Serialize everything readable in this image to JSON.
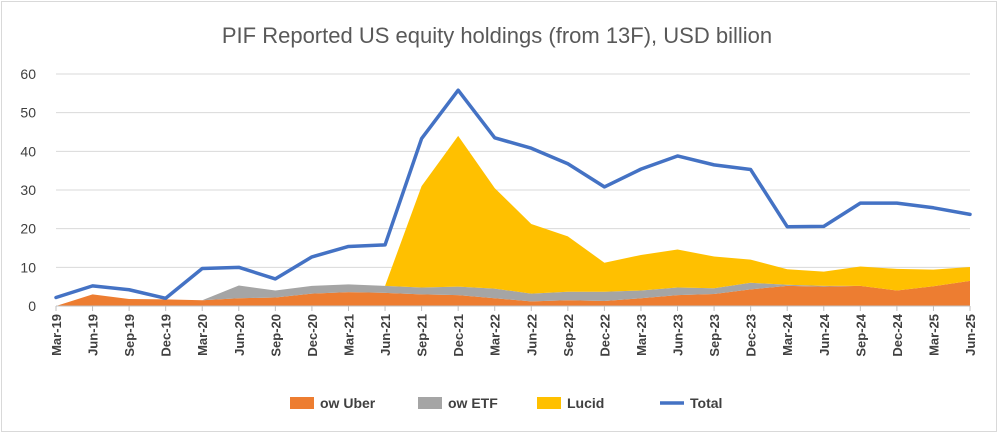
{
  "chart_data": {
    "type": "area",
    "title": "PIF Reported US equity holdings (from 13F), USD billion",
    "xlabel": "",
    "ylabel": "",
    "ylim": [
      0,
      60
    ],
    "yticks": [
      "0",
      "10",
      "20",
      "30",
      "40",
      "50",
      "60"
    ],
    "grid": true,
    "legend_position": "bottom",
    "categories": [
      "Mar-19",
      "Jun-19",
      "Sep-19",
      "Dec-19",
      "Mar-20",
      "Jun-20",
      "Sep-20",
      "Dec-20",
      "Mar-21",
      "Jun-21",
      "Sep-21",
      "Dec-21",
      "Mar-22",
      "Jun-22",
      "Sep-22",
      "Dec-22",
      "Mar-23",
      "Jun-23",
      "Sep-23",
      "Dec-23",
      "Mar-24",
      "Jun-24",
      "Sep-24",
      "Dec-24",
      "Mar-25",
      "Jun-25"
    ],
    "series": [
      {
        "name": "ow Uber",
        "kind": "stacked-area",
        "color": "#ed7d31",
        "values": [
          0,
          3.0,
          1.8,
          1.7,
          1.5,
          2.0,
          2.2,
          3.2,
          3.6,
          3.4,
          3.0,
          2.8,
          2.0,
          1.2,
          1.5,
          1.3,
          2.0,
          2.8,
          3.1,
          4.3,
          5.2,
          5.0,
          5.2,
          4.0,
          5.1,
          6.5
        ]
      },
      {
        "name": "ow ETF",
        "kind": "stacked-area",
        "color": "#a5a5a5",
        "values": [
          0,
          0,
          0,
          0,
          0,
          3.3,
          1.8,
          2.0,
          2.0,
          1.8,
          1.8,
          2.2,
          2.5,
          2.0,
          2.2,
          2.4,
          2.0,
          2.0,
          1.5,
          1.7,
          0.3,
          0.2,
          0,
          0,
          0,
          0
        ]
      },
      {
        "name": "Lucid",
        "kind": "stacked-area",
        "color": "#ffc000",
        "values": [
          0,
          0,
          0,
          0,
          0,
          0,
          0,
          0,
          0,
          0,
          26.2,
          39.0,
          26.0,
          18.0,
          14.3,
          7.5,
          9.2,
          9.8,
          8.2,
          6.0,
          4.0,
          3.7,
          5.0,
          5.6,
          4.3,
          3.6
        ]
      },
      {
        "name": "Total",
        "kind": "line",
        "color": "#4472c4",
        "values": [
          2.2,
          5.2,
          4.2,
          2.0,
          9.7,
          10.0,
          7.0,
          12.7,
          15.4,
          15.8,
          43.3,
          55.8,
          43.5,
          40.8,
          36.8,
          30.8,
          35.4,
          38.8,
          36.5,
          35.3,
          20.5,
          20.6,
          26.6,
          26.6,
          25.4,
          23.7
        ]
      }
    ]
  }
}
